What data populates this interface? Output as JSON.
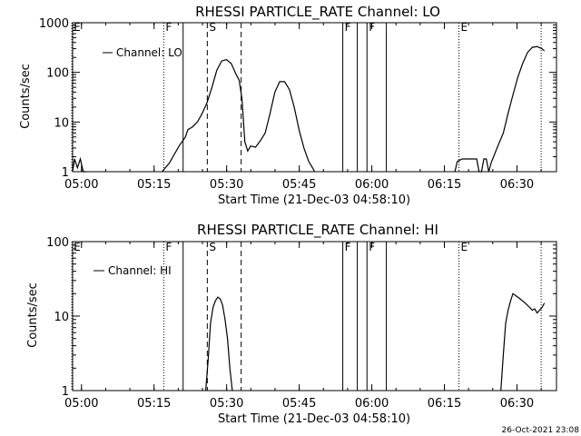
{
  "footer": {
    "date_stamp": "26-Oct-2021 23:08"
  },
  "chart_data": [
    {
      "type": "line",
      "title": "RHESSI PARTICLE_RATE Channel: LO",
      "xlabel": "Start Time (21-Dec-03 04:58:10)",
      "ylabel": "Counts/sec",
      "yscale": "log",
      "ylim": [
        1,
        1000
      ],
      "xlim_minutes_since_start": [
        0,
        100
      ],
      "x_tick_labels": [
        "05:00",
        "05:15",
        "05:30",
        "05:45",
        "06:00",
        "06:15",
        "06:30"
      ],
      "y_tick_labels": [
        "1",
        "10",
        "100",
        "1000"
      ],
      "legend": {
        "position": "top-left",
        "entries": [
          "Channel: LO"
        ]
      },
      "markers": [
        {
          "label": "E",
          "time": "04:58",
          "style": "dotted"
        },
        {
          "label": "F",
          "time": "05:17",
          "style": "dotted"
        },
        {
          "label": "",
          "time": "05:21",
          "style": "solid"
        },
        {
          "label": "S",
          "time": "05:26",
          "style": "dashed"
        },
        {
          "label": "",
          "time": "05:33",
          "style": "dashed"
        },
        {
          "label": "F",
          "time": "05:54",
          "style": "solid"
        },
        {
          "label": "",
          "time": "05:57",
          "style": "solid"
        },
        {
          "label": "F",
          "time": "05:59",
          "style": "solid"
        },
        {
          "label": "",
          "time": "06:03",
          "style": "solid"
        },
        {
          "label": "E",
          "time": "06:18",
          "style": "dotted"
        },
        {
          "label": "",
          "time": "06:35",
          "style": "dotted"
        }
      ],
      "series": [
        {
          "name": "Channel: LO",
          "x_minutes_since_start": [
            0.0,
            1.6,
            2.4,
            3.0
          ],
          "y": [
            1.8,
            1.8,
            1.0,
            1.0
          ],
          "segments": [
            {
              "x": [
                0.0,
                0.4,
                1.0,
                1.6,
                2.2,
                2.8
              ],
              "y": [
                1.0,
                1.8,
                1.2,
                1.8,
                1.0,
                1.0
              ]
            },
            {
              "x": [
                18.5,
                20.0,
                22.0,
                23.3,
                23.8,
                24.8,
                25.8,
                26.8,
                27.8,
                28.8,
                29.8,
                30.8,
                31.8,
                32.8,
                33.8,
                34.4,
                35.0,
                35.6,
                36.2,
                36.8,
                37.8,
                38.8,
                39.8,
                40.8,
                41.8,
                42.8,
                43.8,
                44.8,
                45.8,
                46.8,
                47.8,
                48.8,
                49.8,
                50.0
              ],
              "y": [
                1.0,
                1.5,
                3.3,
                5.0,
                7.0,
                8.0,
                10.0,
                15.0,
                25.0,
                50.0,
                110.0,
                170.0,
                180.0,
                150.0,
                90.0,
                70.0,
                30.0,
                4.0,
                2.6,
                3.3,
                3.1,
                4.2,
                6.0,
                15.0,
                40.0,
                65.0,
                65.0,
                45.0,
                20.0,
                7.0,
                3.0,
                1.6,
                1.1,
                1.0
              ]
            },
            {
              "x": [
                79.0,
                79.5,
                80.5,
                81.5,
                82.5,
                83.5,
                84.0,
                84.5,
                85.0,
                85.5,
                86.0,
                86.5,
                87.0,
                88.0,
                89.0,
                90.0,
                91.0,
                92.0,
                93.0,
                94.0,
                95.0,
                96.0,
                97.0,
                97.5
              ],
              "y": [
                1.0,
                1.6,
                1.8,
                1.8,
                1.8,
                1.8,
                1.0,
                1.0,
                1.8,
                1.8,
                1.0,
                1.5,
                2.0,
                3.5,
                6.0,
                15.0,
                35.0,
                80.0,
                150.0,
                250.0,
                320.0,
                330.0,
                300.0,
                270.0
              ]
            }
          ]
        }
      ]
    },
    {
      "type": "line",
      "title": "RHESSI PARTICLE_RATE Channel: HI",
      "xlabel": "Start Time (21-Dec-03 04:58:10)",
      "ylabel": "Counts/sec",
      "yscale": "log",
      "ylim": [
        1,
        100
      ],
      "x_tick_labels": [
        "05:00",
        "05:15",
        "05:30",
        "05:45",
        "06:00",
        "06:15",
        "06:30"
      ],
      "y_tick_labels": [
        "1",
        "10",
        "100"
      ],
      "legend": {
        "position": "top-left",
        "entries": [
          "Channel: HI"
        ]
      },
      "markers": [
        {
          "label": "E",
          "time": "04:58",
          "style": "dotted"
        },
        {
          "label": "F",
          "time": "05:17",
          "style": "dotted"
        },
        {
          "label": "",
          "time": "05:21",
          "style": "solid"
        },
        {
          "label": "S",
          "time": "05:26",
          "style": "dashed"
        },
        {
          "label": "",
          "time": "05:33",
          "style": "dashed"
        },
        {
          "label": "F",
          "time": "05:54",
          "style": "solid"
        },
        {
          "label": "",
          "time": "05:57",
          "style": "solid"
        },
        {
          "label": "F",
          "time": "05:59",
          "style": "solid"
        },
        {
          "label": "",
          "time": "06:03",
          "style": "solid"
        },
        {
          "label": "E",
          "time": "06:18",
          "style": "dotted"
        },
        {
          "label": "",
          "time": "06:35",
          "style": "dotted"
        }
      ],
      "series": [
        {
          "name": "Channel: HI",
          "segments": [
            {
              "x": [
                27.5,
                28.0,
                28.5,
                29.0,
                29.5,
                30.0,
                30.5,
                31.0,
                31.5,
                32.0,
                32.5,
                33.0
              ],
              "y": [
                1.0,
                2.5,
                8.0,
                13.0,
                16.0,
                18.0,
                17.0,
                14.0,
                9.0,
                5.0,
                2.0,
                1.0
              ]
            },
            {
              "x": [
                88.5,
                89.0,
                89.5,
                90.0,
                90.5,
                91.0,
                91.5,
                92.0,
                92.5,
                93.0,
                93.5,
                94.0,
                94.5,
                95.0,
                95.5,
                96.0,
                96.5,
                97.0,
                97.5
              ],
              "y": [
                1.0,
                3.0,
                8.0,
                12.0,
                16.0,
                20.0,
                19.0,
                18.0,
                17.0,
                16.0,
                15.0,
                14.0,
                13.0,
                12.0,
                12.5,
                11.0,
                12.0,
                13.0,
                15.0
              ]
            }
          ]
        }
      ]
    }
  ]
}
